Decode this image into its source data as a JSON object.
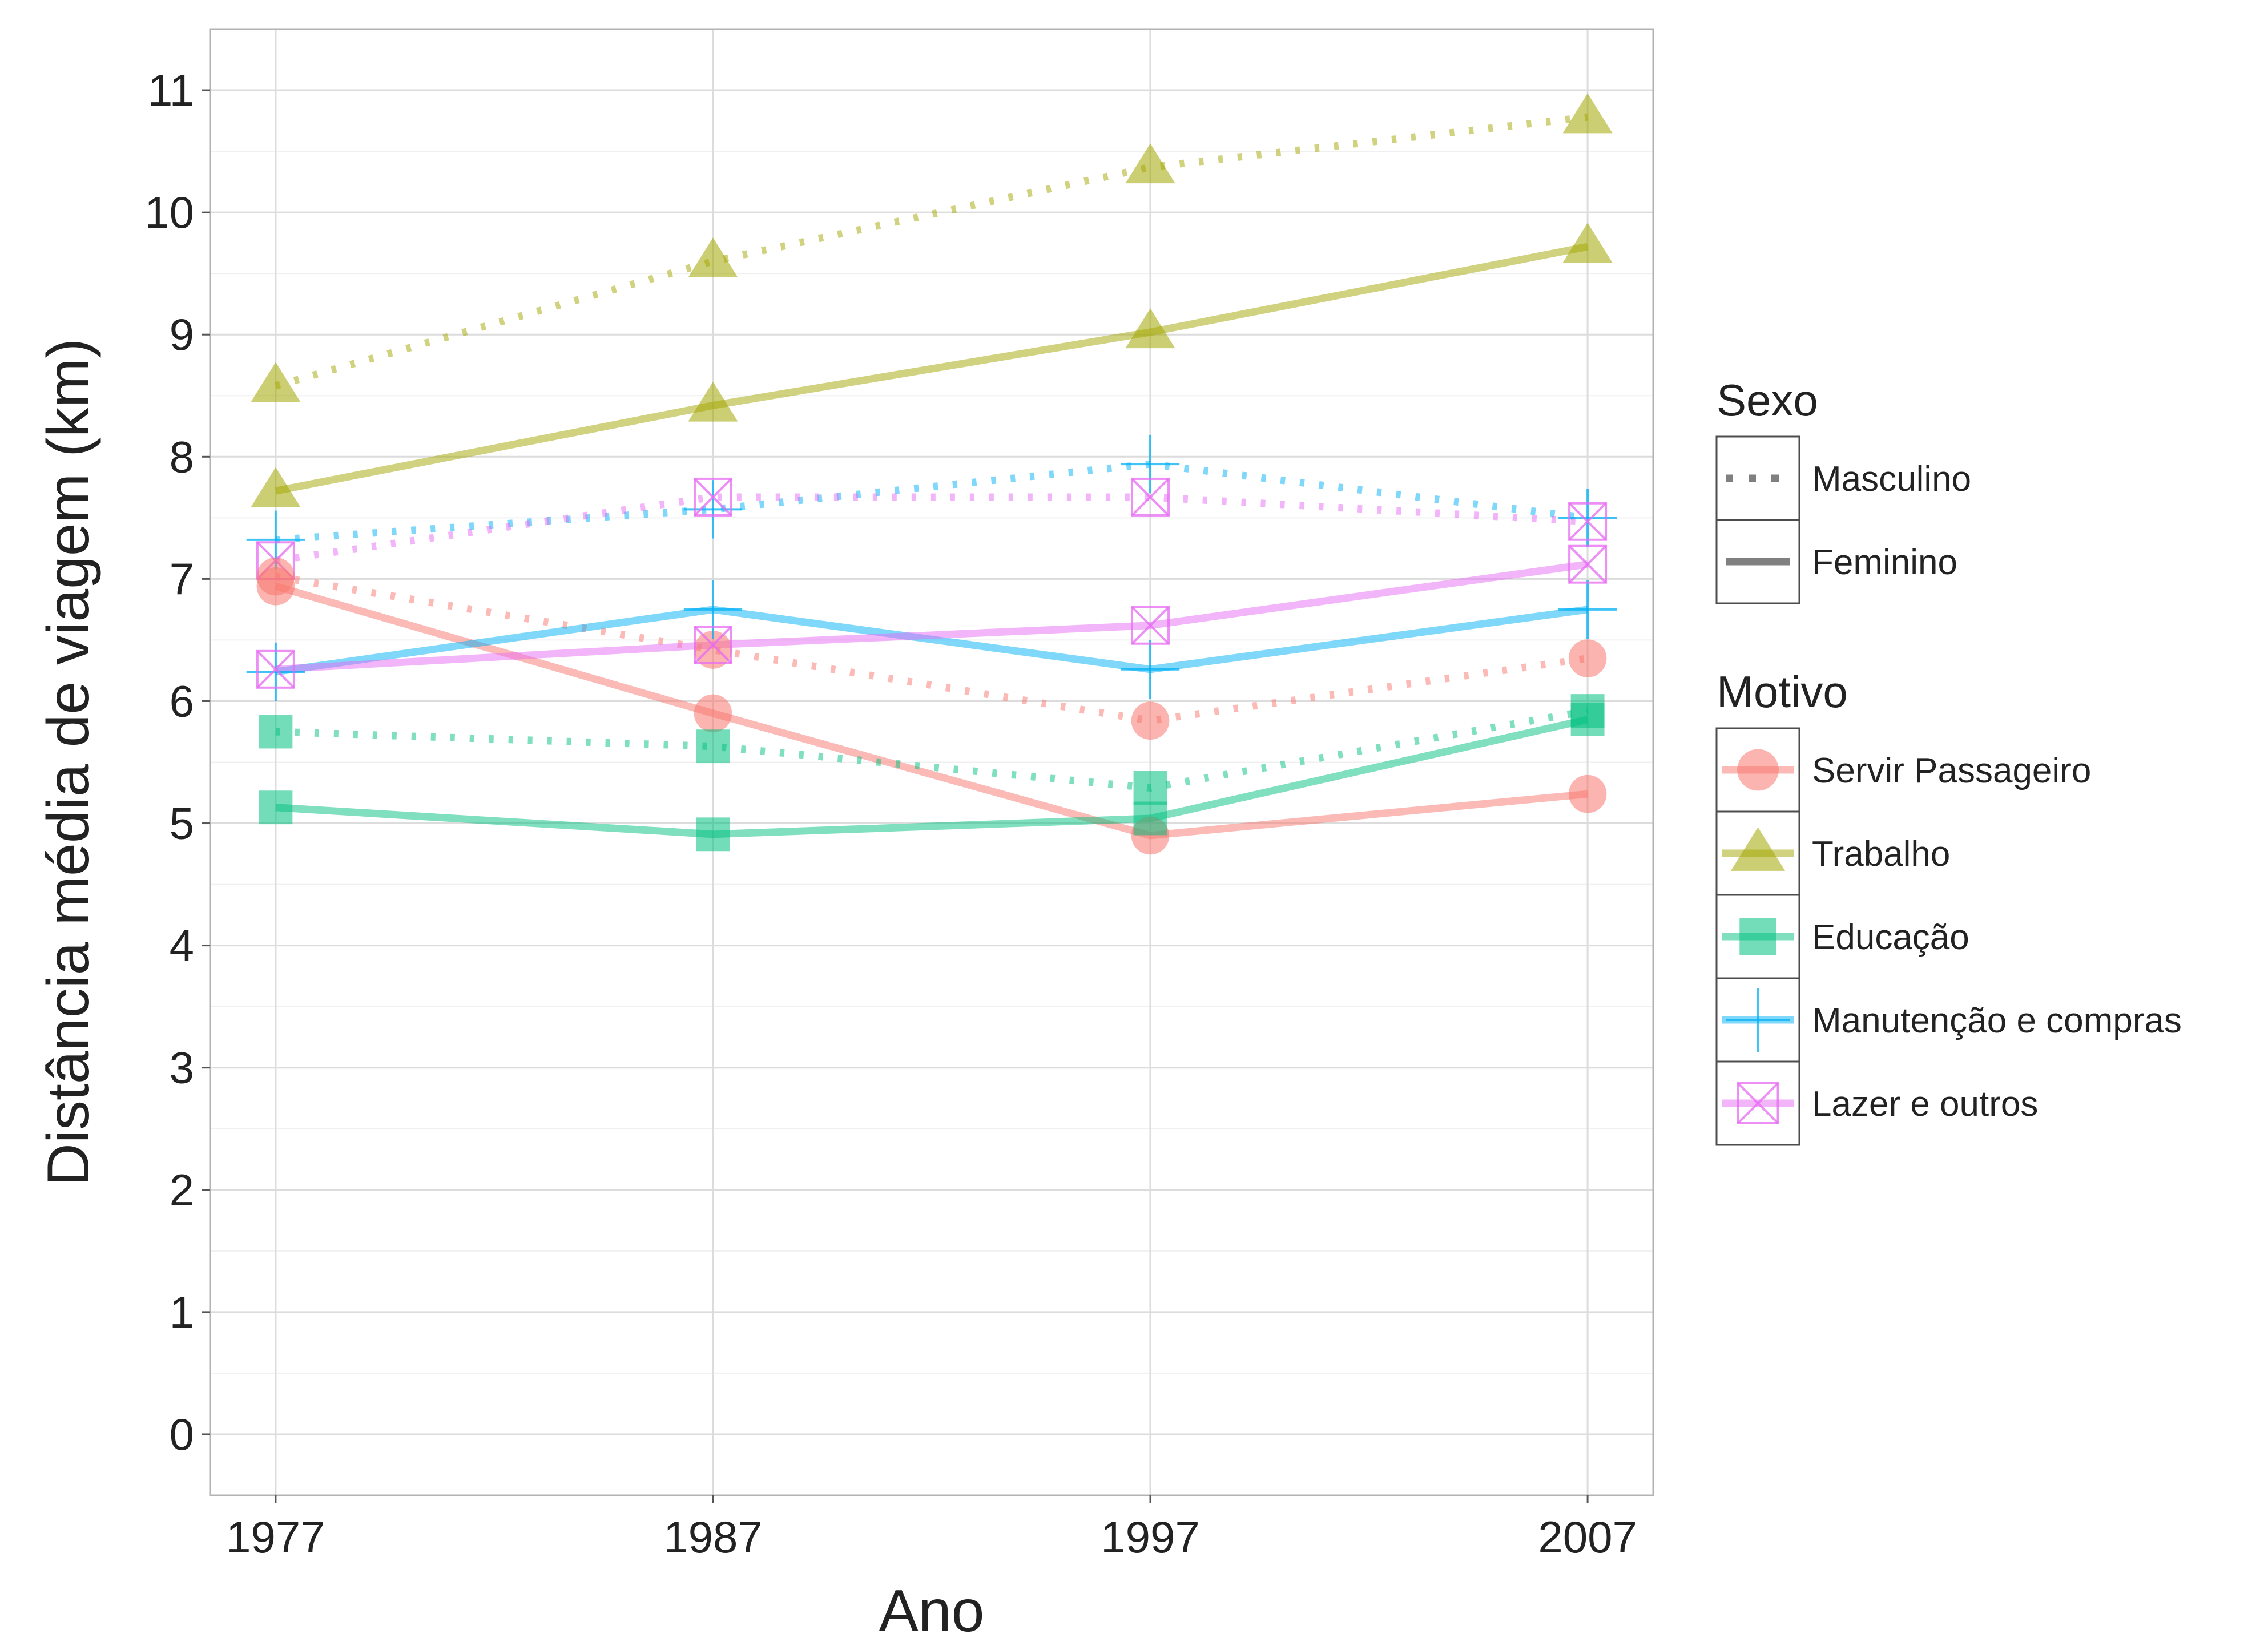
{
  "chart_data": {
    "type": "line",
    "title": "",
    "xlabel": "Ano",
    "ylabel": "Distância média de viagem (km)",
    "categories": [
      "1977",
      "1987",
      "1997",
      "2007"
    ],
    "x": [
      1977,
      1987,
      1997,
      2007
    ],
    "ylim": [
      -0.5,
      11.5
    ],
    "yticks": [
      0,
      1,
      2,
      3,
      4,
      5,
      6,
      7,
      8,
      9,
      10,
      11
    ],
    "grid": true,
    "legend_position": "right",
    "legend": {
      "sexo_title": "Sexo",
      "sexo_entries": [
        {
          "label": "Masculino",
          "linetype": "dotted"
        },
        {
          "label": "Feminino",
          "linetype": "solid"
        }
      ],
      "motivo_title": "Motivo",
      "motivo_entries": [
        {
          "label": "Servir Passageiro",
          "color": "#F8766D",
          "shape": "circle"
        },
        {
          "label": "Trabalho",
          "color": "#A3A500",
          "shape": "triangle"
        },
        {
          "label": "Educação",
          "color": "#00BF7D",
          "shape": "square"
        },
        {
          "label": "Manutenção e compras",
          "color": "#00B0F6",
          "shape": "plus"
        },
        {
          "label": "Lazer e outros",
          "color": "#E76BF3",
          "shape": "boxcross"
        }
      ]
    },
    "series": [
      {
        "motivo": "Trabalho",
        "sexo": "Masculino",
        "values": [
          8.58,
          9.6,
          10.37,
          10.78
        ]
      },
      {
        "motivo": "Trabalho",
        "sexo": "Feminino",
        "values": [
          7.72,
          8.42,
          9.02,
          9.72
        ]
      },
      {
        "motivo": "Manutenção e compras",
        "sexo": "Masculino",
        "values": [
          7.32,
          7.57,
          7.94,
          7.5
        ]
      },
      {
        "motivo": "Lazer e outros",
        "sexo": "Masculino",
        "values": [
          7.15,
          7.67,
          7.67,
          7.47
        ]
      },
      {
        "motivo": "Servir Passageiro",
        "sexo": "Masculino",
        "values": [
          7.02,
          6.42,
          5.84,
          6.35
        ]
      },
      {
        "motivo": "Servir Passageiro",
        "sexo": "Feminino",
        "values": [
          6.94,
          5.9,
          4.9,
          5.24
        ]
      },
      {
        "motivo": "Manutenção e compras",
        "sexo": "Feminino",
        "values": [
          6.24,
          6.75,
          6.26,
          6.75
        ]
      },
      {
        "motivo": "Lazer e outros",
        "sexo": "Feminino",
        "values": [
          6.26,
          6.46,
          6.62,
          7.12
        ]
      },
      {
        "motivo": "Educação",
        "sexo": "Masculino",
        "values": [
          5.75,
          5.63,
          5.29,
          5.92
        ]
      },
      {
        "motivo": "Educação",
        "sexo": "Feminino",
        "values": [
          5.13,
          4.91,
          5.04,
          5.85
        ]
      }
    ]
  }
}
